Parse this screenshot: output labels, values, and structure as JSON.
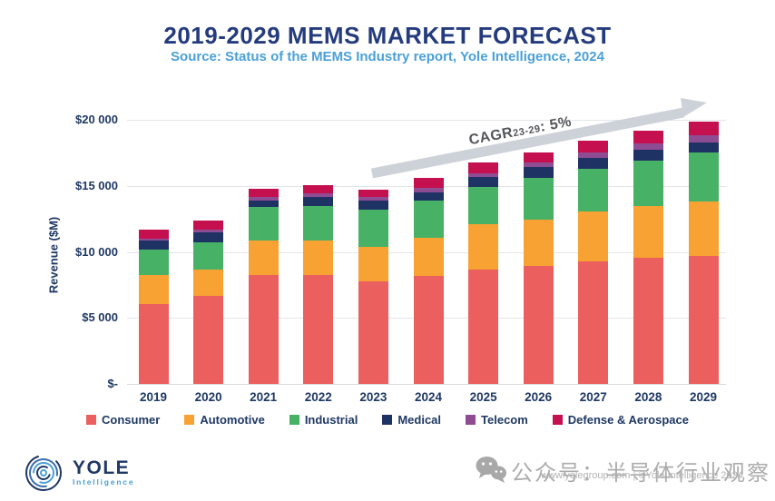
{
  "header": {
    "title": "2019-2029 MEMS MARKET FORECAST",
    "subtitle": "Source: Status of the MEMS Industry report, Yole Intelligence, 2024"
  },
  "chart_data": {
    "type": "bar",
    "stacked": true,
    "title": "2019-2029 MEMS MARKET FORECAST",
    "xlabel": "",
    "ylabel": "Revenue ($M)",
    "categories": [
      "2019",
      "2020",
      "2021",
      "2022",
      "2023",
      "2024",
      "2025",
      "2026",
      "2027",
      "2028",
      "2029"
    ],
    "series": [
      {
        "name": "Consumer",
        "color": "#ec5f5f",
        "values": [
          6050,
          6670,
          8280,
          8230,
          7770,
          8190,
          8650,
          8920,
          9310,
          9540,
          9720
        ]
      },
      {
        "name": "Automotive",
        "color": "#f7a233",
        "values": [
          2180,
          2020,
          2590,
          2640,
          2640,
          2910,
          3440,
          3550,
          3740,
          3960,
          4130
        ]
      },
      {
        "name": "Industrial",
        "color": "#47b266",
        "values": [
          1950,
          2060,
          2520,
          2640,
          2820,
          2820,
          2840,
          3140,
          3250,
          3400,
          3670
        ]
      },
      {
        "name": "Medical",
        "color": "#1f3264",
        "values": [
          690,
          760,
          530,
          690,
          690,
          620,
          760,
          830,
          830,
          850,
          760
        ]
      },
      {
        "name": "Telecom",
        "color": "#8e4d92",
        "values": [
          160,
          210,
          230,
          230,
          230,
          300,
          300,
          320,
          390,
          460,
          550
        ]
      },
      {
        "name": "Defense & Aerospace",
        "color": "#c4104f",
        "values": [
          650,
          690,
          620,
          640,
          550,
          780,
          780,
          760,
          920,
          980,
          1030
        ]
      }
    ],
    "totals": [
      11680,
      12410,
      14770,
      15070,
      14700,
      15620,
      16770,
      17520,
      18440,
      19190,
      19860
    ],
    "yticks": [
      {
        "value": 0,
        "label": "$-"
      },
      {
        "value": 5000,
        "label": "$5 000"
      },
      {
        "value": 10000,
        "label": "$10 000"
      },
      {
        "value": 15000,
        "label": "$15 000"
      },
      {
        "value": 20000,
        "label": "$20 000"
      }
    ],
    "ylim": [
      0,
      22500
    ],
    "grid": true,
    "legend_position": "bottom",
    "annotation": {
      "text_prefix": "CAGR",
      "text_sub": "23-29",
      "text_suffix": ": 5%",
      "arrow_color": "#cdd2d9"
    }
  },
  "footer": {
    "logo_title": "YOLE",
    "logo_subtitle": "Intelligence",
    "watermark_cn": "公众号：半导体行业观察",
    "watermark_small": "www.yolegroup.com | ©Yole Intelligence 2024"
  },
  "colors": {
    "title": "#243b7d",
    "subtitle": "#4ba0d9",
    "axis_text": "#1f3864",
    "gridline": "#e4e5e9",
    "watermark": "#acacac"
  }
}
